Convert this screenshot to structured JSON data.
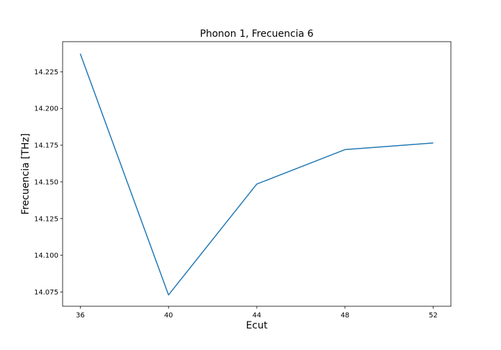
{
  "chart_data": {
    "type": "line",
    "title": "Phonon 1, Frecuencia 6",
    "xlabel": "Ecut",
    "ylabel": "Frecuencia [THz]",
    "x": [
      36,
      40,
      44,
      48,
      52
    ],
    "series": [
      {
        "values": [
          14.2373,
          14.073,
          14.1485,
          14.172,
          14.1765
        ],
        "color": "#1f77b4"
      }
    ],
    "xlim": [
      35.2,
      52.8
    ],
    "ylim": [
      14.0653,
      14.2455
    ],
    "xticks": [
      "36",
      "40",
      "44",
      "48",
      "52"
    ],
    "yticks": [
      "14.075",
      "14.100",
      "14.125",
      "14.150",
      "14.175",
      "14.200",
      "14.225"
    ],
    "grid": false,
    "legend": false
  }
}
